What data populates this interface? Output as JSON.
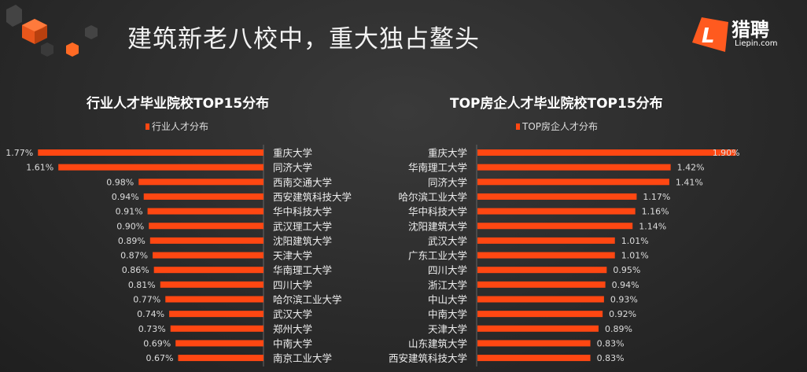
{
  "header": {
    "title": "建筑新老八校中，重大独占鳌头"
  },
  "logo": {
    "name": "猎聘",
    "sub": "Liepin.com"
  },
  "colors": {
    "bar": "#ff4712",
    "background": "#2b2b2b",
    "accent": "#ff5a1f"
  },
  "chart_data": [
    {
      "type": "bar",
      "orientation": "horizontal",
      "direction": "left",
      "title": "行业人才毕业院校TOP15分布",
      "series": [
        {
          "name": "行业人才分布",
          "values": [
            1.77,
            1.61,
            0.98,
            0.94,
            0.91,
            0.9,
            0.89,
            0.87,
            0.86,
            0.81,
            0.77,
            0.74,
            0.73,
            0.69,
            0.67
          ]
        }
      ],
      "categories": [
        "重庆大学",
        "同济大学",
        "西南交通大学",
        "西安建筑科技大学",
        "华中科技大学",
        "武汉理工大学",
        "沈阳建筑大学",
        "天津大学",
        "华南理工大学",
        "四川大学",
        "哈尔滨工业大学",
        "武汉大学",
        "郑州大学",
        "中南大学",
        "南京工业大学"
      ],
      "labels": [
        "1.77%",
        "1.61%",
        "0.98%",
        "0.94%",
        "0.91%",
        "0.90%",
        "0.89%",
        "0.87%",
        "0.86%",
        "0.81%",
        "0.77%",
        "0.74%",
        "0.73%",
        "0.69%",
        "0.67%"
      ],
      "unit": "%",
      "legend": "top",
      "grid": false
    },
    {
      "type": "bar",
      "orientation": "horizontal",
      "direction": "right",
      "title": "TOP房企人才毕业院校TOP15分布",
      "series": [
        {
          "name": "TOP房企人才分布",
          "values": [
            1.9,
            1.42,
            1.41,
            1.17,
            1.16,
            1.14,
            1.01,
            1.01,
            0.95,
            0.94,
            0.93,
            0.92,
            0.89,
            0.83,
            0.83
          ]
        }
      ],
      "categories": [
        "重庆大学",
        "华南理工大学",
        "同济大学",
        "哈尔滨工业大学",
        "华中科技大学",
        "沈阳建筑大学",
        "武汉大学",
        "广东工业大学",
        "四川大学",
        "浙江大学",
        "中山大学",
        "中南大学",
        "天津大学",
        "山东建筑大学",
        "西安建筑科技大学"
      ],
      "labels": [
        "1.90%",
        "1.42%",
        "1.41%",
        "1.17%",
        "1.16%",
        "1.14%",
        "1.01%",
        "1.01%",
        "0.95%",
        "0.94%",
        "0.93%",
        "0.92%",
        "0.89%",
        "0.83%",
        "0.83%"
      ],
      "unit": "%",
      "legend": "top",
      "grid": false
    }
  ]
}
